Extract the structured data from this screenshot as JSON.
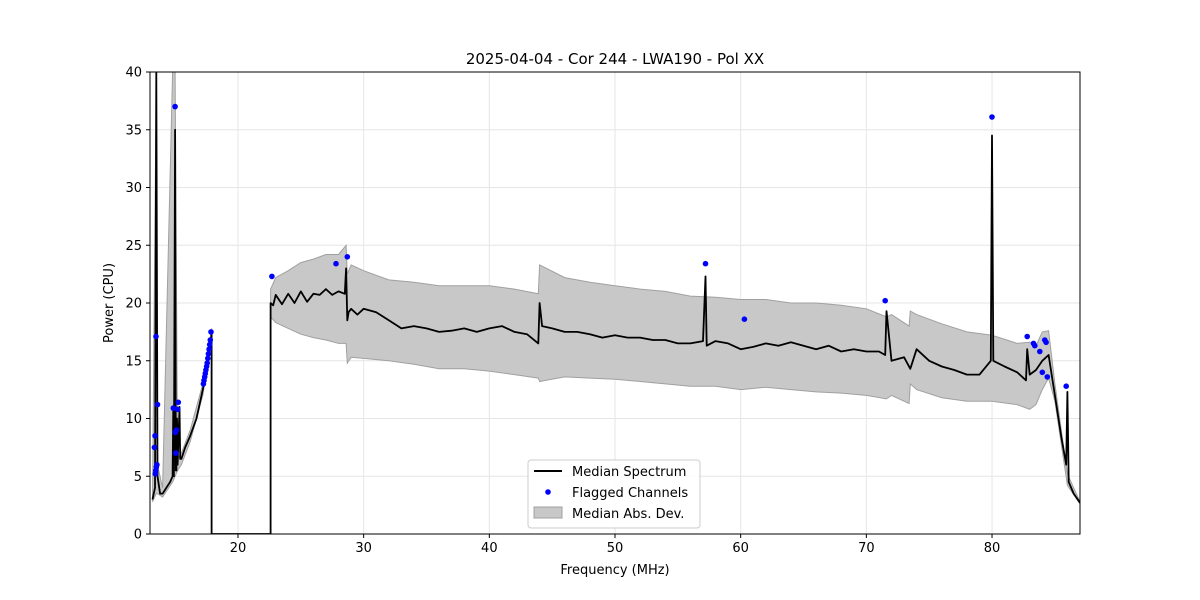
{
  "chart_data": {
    "type": "line",
    "title": "2025-04-04 - Cor 244 - LWA190 - Pol XX",
    "xlabel": "Frequency (MHz)",
    "ylabel": "Power (CPU)",
    "xlim": [
      13,
      87
    ],
    "ylim": [
      0,
      40
    ],
    "xticks": [
      20,
      30,
      40,
      50,
      60,
      70,
      80
    ],
    "xtick_labels": [
      "20",
      "30",
      "40",
      "50",
      "60",
      "70",
      "80"
    ],
    "yticks": [
      0,
      5,
      10,
      15,
      20,
      25,
      30,
      35,
      40
    ],
    "ytick_labels": [
      "0",
      "5",
      "10",
      "15",
      "20",
      "25",
      "30",
      "35",
      "40"
    ],
    "grid": true,
    "legend_position": "bottom-center",
    "legend": [
      "Median Spectrum",
      "Flagged Channels",
      "Median Abs. Dev."
    ],
    "colors": {
      "median": "#000000",
      "flagged": "#0000ff",
      "mad_fill": "#c8c8c8",
      "mad_edge": "#a0a0a0",
      "grid": "#e6e6e6"
    },
    "series": [
      {
        "name": "Median Spectrum",
        "x": [
          13.2,
          13.4,
          13.5,
          13.5,
          13.6,
          13.8,
          14.0,
          14.3,
          14.6,
          14.8,
          14.85,
          14.9,
          15.0,
          15.05,
          15.1,
          15.15,
          15.2,
          15.35,
          15.4,
          15.5,
          15.8,
          16.2,
          16.7,
          17.2,
          17.5,
          17.8,
          17.9,
          17.9,
          22.6,
          22.6,
          22.8,
          23.0,
          23.5,
          24.0,
          24.5,
          25.0,
          25.5,
          26.0,
          26.5,
          27.0,
          27.5,
          28.0,
          28.5,
          28.6,
          28.7,
          28.8,
          29.0,
          29.5,
          30.0,
          31.0,
          32.0,
          33.0,
          34.0,
          35.0,
          36.0,
          37.0,
          38.0,
          39.0,
          40.0,
          41.0,
          42.0,
          43.0,
          43.9,
          44.0,
          44.2,
          45.0,
          46.0,
          47.0,
          48.0,
          49.0,
          50.0,
          51.0,
          52.0,
          53.0,
          54.0,
          55.0,
          56.0,
          57.0,
          57.2,
          57.3,
          58.0,
          59.0,
          60.0,
          61.0,
          62.0,
          63.0,
          64.0,
          65.0,
          66.0,
          67.0,
          68.0,
          69.0,
          70.0,
          71.0,
          71.5,
          71.6,
          72.0,
          73.0,
          73.5,
          74.0,
          75.0,
          76.0,
          77.0,
          78.0,
          79.0,
          79.9,
          80.0,
          80.1,
          81.0,
          82.0,
          82.7,
          82.8,
          83.0,
          83.5,
          84.0,
          84.5,
          85.0,
          85.5,
          85.9,
          86.0,
          86.1,
          86.5,
          87.0
        ],
        "values": [
          3.0,
          4.0,
          40.0,
          40.0,
          5.0,
          3.5,
          3.5,
          4.0,
          4.5,
          5.0,
          11.0,
          5.0,
          35.0,
          5.5,
          5.5,
          10.0,
          6.0,
          11.0,
          6.5,
          6.5,
          7.5,
          8.5,
          10.0,
          12.5,
          14.0,
          16.5,
          17.3,
          0.0,
          0.0,
          20.0,
          19.8,
          20.7,
          19.9,
          20.8,
          20.0,
          21.0,
          20.1,
          20.8,
          20.7,
          21.2,
          20.7,
          21.0,
          20.8,
          23.0,
          18.5,
          19.2,
          19.5,
          19.0,
          19.5,
          19.2,
          18.5,
          17.8,
          18.0,
          17.8,
          17.5,
          17.6,
          17.8,
          17.5,
          17.8,
          18.0,
          17.5,
          17.3,
          16.5,
          20.0,
          18.0,
          17.8,
          17.5,
          17.5,
          17.3,
          17.0,
          17.2,
          17.0,
          17.0,
          16.8,
          16.8,
          16.5,
          16.5,
          16.7,
          22.3,
          16.3,
          16.7,
          16.5,
          16.0,
          16.2,
          16.5,
          16.3,
          16.6,
          16.3,
          16.0,
          16.3,
          15.8,
          16.0,
          15.8,
          15.8,
          15.5,
          19.3,
          15.0,
          15.3,
          14.3,
          16.0,
          15.0,
          14.5,
          14.2,
          13.8,
          13.8,
          15.0,
          34.5,
          15.0,
          14.5,
          14.0,
          13.3,
          16.0,
          13.8,
          14.2,
          15.0,
          15.5,
          12.0,
          8.5,
          6.0,
          12.3,
          4.5,
          3.5,
          2.7
        ]
      },
      {
        "name": "Median Abs. Dev.",
        "x": [
          13.2,
          13.5,
          13.6,
          14.0,
          14.8,
          15.0,
          15.2,
          15.5,
          16.2,
          17.2,
          17.9,
          17.9,
          22.6,
          22.6,
          23.0,
          24.0,
          25.0,
          26.0,
          27.0,
          28.0,
          28.6,
          28.7,
          29.0,
          30.0,
          32.0,
          34.0,
          36.0,
          38.0,
          40.0,
          42.0,
          43.9,
          44.0,
          46.0,
          48.0,
          50.0,
          52.0,
          54.0,
          56.0,
          58.0,
          60.0,
          62.0,
          64.0,
          66.0,
          68.0,
          70.0,
          71.6,
          72.0,
          73.4,
          73.5,
          74.0,
          76.0,
          78.0,
          80.0,
          82.0,
          83.0,
          83.5,
          84.0,
          84.5,
          85.0,
          86.0,
          87.0
        ],
        "upper": [
          3.2,
          40.0,
          6.0,
          4.0,
          40.0,
          40.0,
          6.5,
          7.0,
          9.0,
          13.0,
          17.8,
          0.0,
          0.0,
          21.2,
          22.2,
          22.8,
          23.5,
          23.8,
          24.2,
          24.2,
          25.0,
          22.5,
          23.3,
          22.8,
          22.0,
          21.8,
          21.5,
          21.5,
          21.5,
          21.2,
          20.8,
          23.3,
          22.2,
          21.8,
          21.5,
          21.2,
          21.0,
          20.6,
          20.5,
          20.3,
          20.3,
          20.0,
          20.0,
          19.8,
          19.5,
          18.8,
          19.0,
          18.0,
          19.3,
          19.0,
          18.2,
          17.5,
          17.2,
          16.5,
          16.6,
          16.3,
          17.5,
          17.6,
          13.0,
          5.2,
          2.8
        ],
        "lower": [
          2.8,
          3.5,
          3.5,
          3.2,
          4.5,
          5.0,
          5.5,
          6.0,
          8.0,
          12.0,
          16.9,
          0.0,
          0.0,
          18.8,
          18.3,
          17.8,
          17.3,
          17.0,
          16.8,
          16.5,
          16.5,
          14.8,
          15.3,
          15.2,
          15.0,
          14.7,
          14.3,
          14.3,
          14.1,
          13.8,
          13.5,
          13.2,
          13.6,
          13.5,
          13.4,
          13.2,
          13.0,
          12.8,
          12.8,
          12.5,
          12.7,
          12.5,
          12.3,
          12.2,
          12.0,
          11.7,
          12.0,
          11.3,
          13.0,
          12.5,
          11.8,
          11.5,
          11.5,
          11.2,
          10.8,
          11.2,
          12.5,
          13.5,
          11.5,
          4.2,
          2.6
        ]
      },
      {
        "name": "Flagged Channels",
        "x": [
          13.35,
          13.4,
          13.42,
          13.45,
          13.48,
          13.5,
          13.55,
          13.6,
          14.85,
          15.0,
          15.02,
          15.05,
          15.1,
          15.2,
          15.25,
          17.25,
          17.3,
          17.35,
          17.4,
          17.45,
          17.5,
          17.55,
          17.6,
          17.65,
          17.7,
          17.75,
          17.8,
          17.85,
          22.7,
          27.8,
          28.7,
          57.2,
          60.3,
          71.5,
          80.0,
          82.8,
          83.3,
          83.4,
          83.8,
          84.0,
          84.2,
          84.3,
          84.4,
          85.9
        ],
        "values": [
          7.5,
          8.5,
          5.2,
          5.5,
          17.1,
          5.8,
          6.0,
          11.2,
          10.9,
          37.0,
          8.8,
          7.0,
          9.0,
          10.8,
          11.4,
          13.0,
          13.3,
          13.6,
          13.9,
          14.2,
          14.5,
          14.8,
          15.2,
          15.6,
          16.0,
          16.4,
          16.8,
          17.5,
          22.3,
          23.4,
          24.0,
          23.4,
          18.6,
          20.2,
          36.1,
          17.1,
          16.5,
          16.3,
          15.8,
          14.0,
          16.8,
          16.6,
          13.6,
          12.8
        ]
      }
    ]
  }
}
